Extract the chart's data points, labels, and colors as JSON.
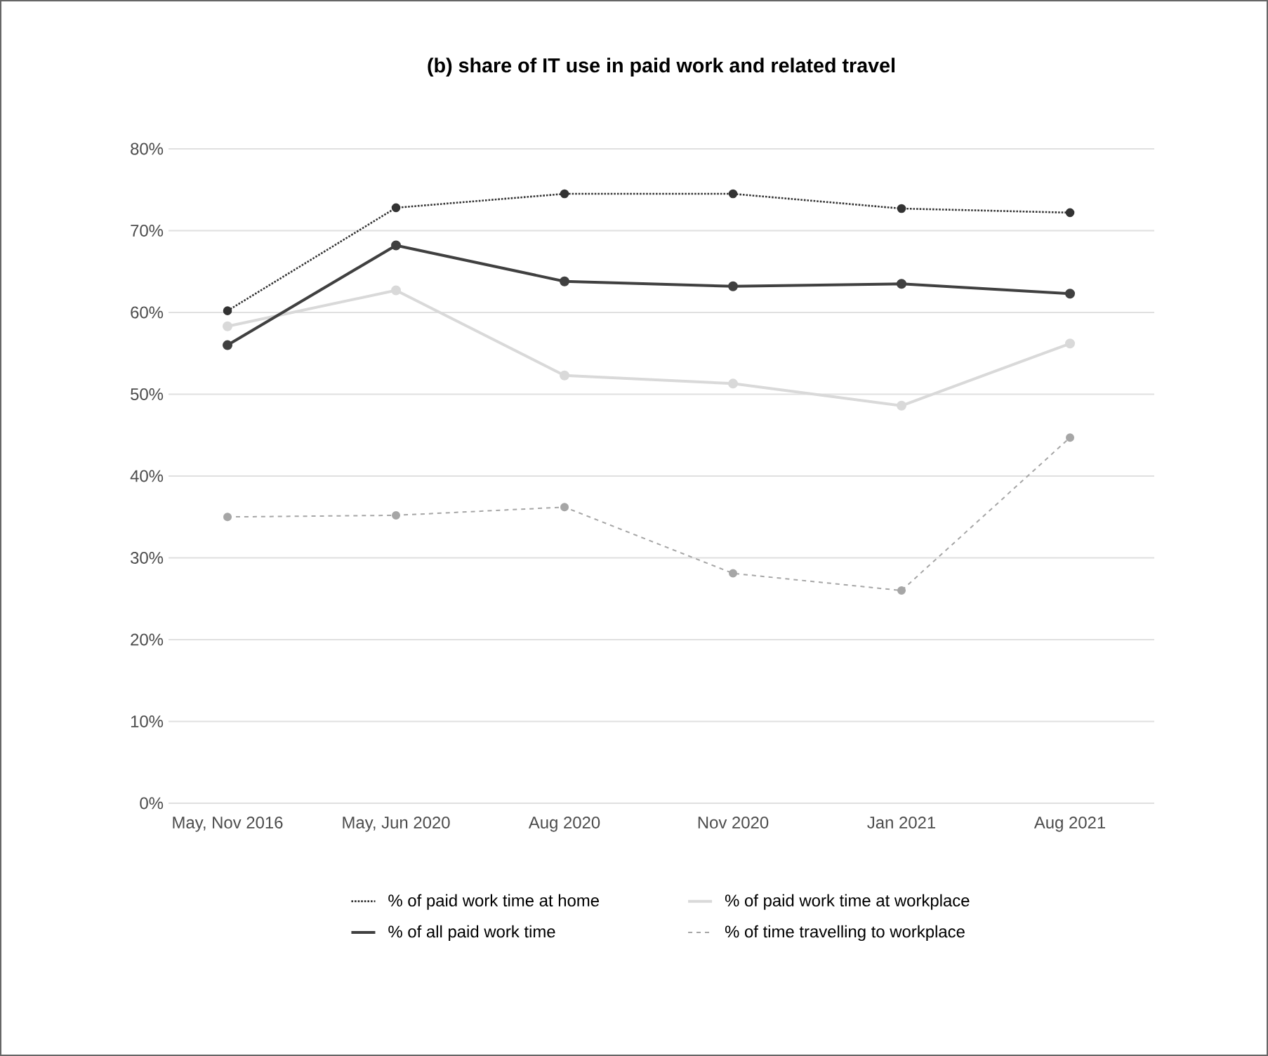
{
  "chart_data": {
    "type": "line",
    "title": "(b) share of IT use in paid work and related travel",
    "categories": [
      "May, Nov 2016",
      "May, Jun 2020",
      "Aug 2020",
      "Nov 2020",
      "Jan 2021",
      "Aug 2021"
    ],
    "series": [
      {
        "name": "% of paid work time at home",
        "color": "#333333",
        "line_style": "dotted",
        "values": [
          60.2,
          72.8,
          74.5,
          74.5,
          72.7,
          72.2
        ]
      },
      {
        "name": "% of paid work time at workplace",
        "color": "#d9d9d9",
        "line_style": "solid",
        "values": [
          58.3,
          62.7,
          52.3,
          51.3,
          48.6,
          56.2
        ]
      },
      {
        "name": "% of all paid work time",
        "color": "#404040",
        "line_style": "solid",
        "values": [
          56.0,
          68.2,
          63.8,
          63.2,
          63.5,
          62.3
        ]
      },
      {
        "name": "% of time travelling to workplace",
        "color": "#a6a6a6",
        "line_style": "dashed",
        "values": [
          35.0,
          35.2,
          36.2,
          28.1,
          26.0,
          44.7
        ]
      }
    ],
    "ylim": [
      0,
      80
    ],
    "yticks": [
      {
        "value": 0,
        "label": "0%"
      },
      {
        "value": 10,
        "label": "10%"
      },
      {
        "value": 20,
        "label": "20%"
      },
      {
        "value": 30,
        "label": "30%"
      },
      {
        "value": 40,
        "label": "40%"
      },
      {
        "value": 50,
        "label": "50%"
      },
      {
        "value": 60,
        "label": "60%"
      },
      {
        "value": 70,
        "label": "70%"
      },
      {
        "value": 80,
        "label": "80%"
      }
    ],
    "grid": "y",
    "legend": "bottom",
    "marker": "circle"
  }
}
